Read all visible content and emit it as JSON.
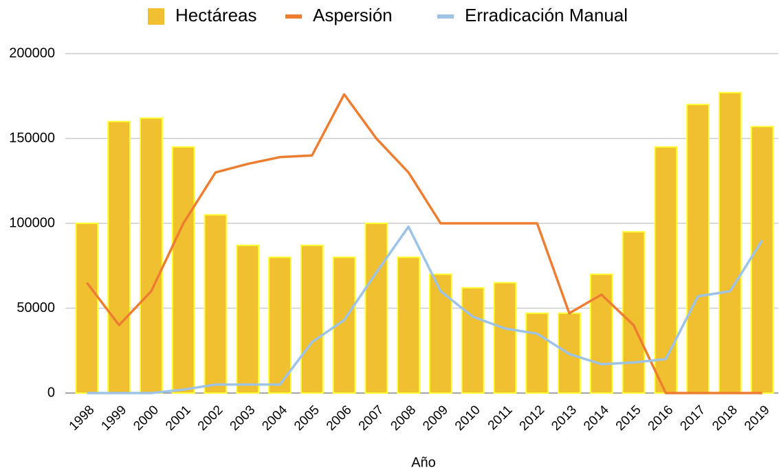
{
  "chart_data": {
    "type": "combo",
    "x_label": "Año",
    "categories": [
      "1998",
      "1999",
      "2000",
      "2001",
      "2002",
      "2003",
      "2004",
      "2005",
      "2006",
      "2007",
      "2008",
      "2009",
      "2010",
      "2011",
      "2012",
      "2013",
      "2014",
      "2015",
      "2016",
      "2017",
      "2018",
      "2019"
    ],
    "series": [
      {
        "name": "Hectáreas",
        "type": "bar",
        "color": "#f0c030",
        "values": [
          100000,
          160000,
          162000,
          145000,
          105000,
          87000,
          80000,
          87000,
          80000,
          100000,
          80000,
          70000,
          62000,
          65000,
          47000,
          47000,
          70000,
          95000,
          145000,
          170000,
          177000,
          157000
        ]
      },
      {
        "name": "Aspersión",
        "type": "line",
        "color": "#ed7d31",
        "values": [
          65000,
          40000,
          60000,
          100000,
          130000,
          135000,
          139000,
          140000,
          176000,
          150000,
          130000,
          100000,
          100000,
          100000,
          100000,
          47000,
          58000,
          40000,
          0,
          0,
          0,
          0
        ]
      },
      {
        "name": "Erradicación Manual",
        "type": "line",
        "color": "#9dc3e6",
        "values": [
          0,
          0,
          0,
          2000,
          5000,
          5000,
          5000,
          30000,
          43000,
          71000,
          98000,
          60000,
          45000,
          38000,
          35000,
          23000,
          17000,
          18000,
          20000,
          57000,
          60000,
          90000
        ]
      }
    ],
    "ylim": [
      0,
      200000
    ],
    "yticks": [
      0,
      50000,
      100000,
      150000,
      200000
    ],
    "grid": true,
    "legend": "top"
  }
}
